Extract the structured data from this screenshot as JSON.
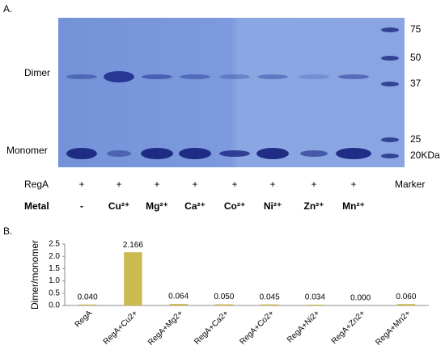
{
  "panel_a": {
    "label": "A.",
    "band_labels": [
      "Dimer",
      "Monomer"
    ],
    "marker_sizes": [
      "75",
      "50",
      "37",
      "25",
      "20KDa"
    ],
    "rows": [
      {
        "name": "RegA",
        "cells": [
          "+",
          "+",
          "+",
          "+",
          "+",
          "+",
          "+",
          "+"
        ],
        "end": "Marker"
      },
      {
        "name": "Metal",
        "cells": [
          "-",
          "Cu²⁺",
          "Mg²⁺",
          "Ca²⁺",
          "Co²⁺",
          "Ni²⁺",
          "Zn²⁺",
          "Mn²⁺"
        ]
      }
    ]
  },
  "chart_data": {
    "type": "bar",
    "panel_label": "B.",
    "y_label": "Dimer/monomer",
    "categories": [
      "RegA",
      "RegA+Cu2+",
      "RegA+Mg2+",
      "RegA+Ca2+",
      "RegA+Co2+",
      "RegA+Ni2+",
      "RegA+Zn2+",
      "RegA+Mn2+"
    ],
    "values": [
      0.04,
      2.166,
      0.064,
      0.05,
      0.045,
      0.034,
      0.0,
      0.06
    ],
    "value_labels": [
      "0.040",
      "2.166",
      "0.064",
      "0.050",
      "0.045",
      "0.034",
      "0.000",
      "0.060"
    ],
    "color": "#cbbb4f",
    "ylim": [
      0,
      2.5
    ],
    "yticks": [
      {
        "value": 0,
        "label": "0.0"
      },
      {
        "value": 0.5,
        "label": "0.5"
      },
      {
        "value": 1,
        "label": "1.0"
      },
      {
        "value": 1.5,
        "label": "1.5"
      },
      {
        "value": 2,
        "label": "2.0"
      },
      {
        "value": 2.5,
        "label": "2.5"
      }
    ]
  }
}
